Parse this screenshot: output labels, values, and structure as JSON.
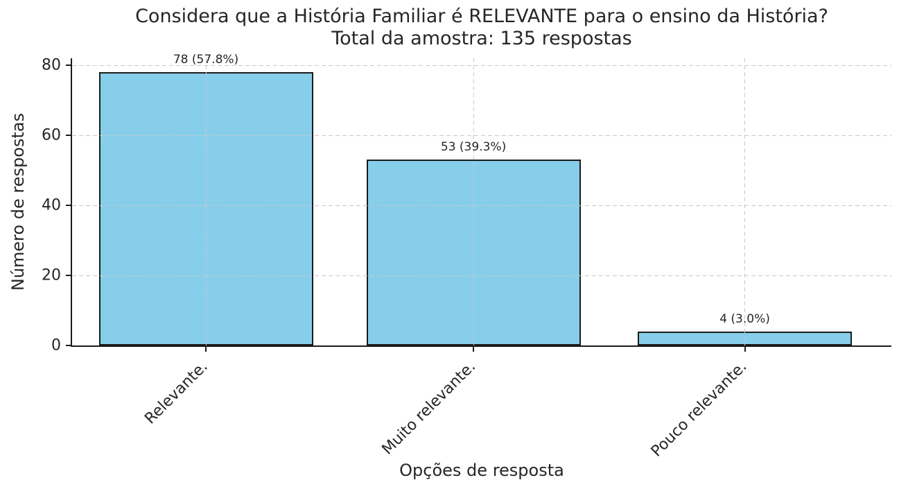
{
  "chart_data": {
    "type": "bar",
    "title_line1": "Considera que a História Familiar é RELEVANTE para o ensino da História?",
    "title_line2": "Total da amostra: 135 respostas",
    "xlabel": "Opções de resposta",
    "ylabel": "Número de respostas",
    "categories": [
      "Relevante.",
      "Muito relevante.",
      "Pouco relevante."
    ],
    "values": [
      78,
      53,
      4
    ],
    "bar_value_labels": [
      "78 (57.8%)",
      "53 (39.3%)",
      "4 (3.0%)"
    ],
    "total_sample": 135,
    "y_ticks": [
      0,
      20,
      40,
      60,
      80
    ],
    "ylim": [
      0,
      82
    ],
    "grid": "dashed, both axes, drawn over bars",
    "legend": "none",
    "bar_color": "#87CEEB",
    "bar_edge_color": "#1a1a1a",
    "grid_color": "#c9c9c9",
    "text_color": "#262626",
    "background_color": "#ffffff"
  }
}
